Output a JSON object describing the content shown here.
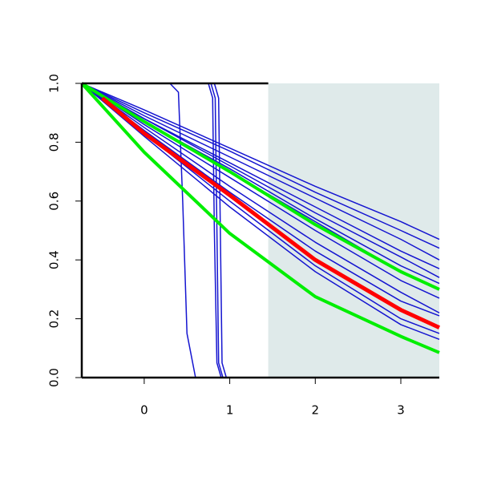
{
  "chart_data": {
    "type": "line",
    "xlim": [
      -0.73,
      3.45
    ],
    "ylim": [
      0,
      1
    ],
    "xticks": [
      0,
      1,
      2,
      3
    ],
    "yticks": [
      {
        "value": 0,
        "label": "0.0"
      },
      {
        "value": 0.2,
        "label": "0.2"
      },
      {
        "value": 0.4,
        "label": "0.4"
      },
      {
        "value": 0.6,
        "label": "0.6"
      },
      {
        "value": 0.8,
        "label": "0.8"
      },
      {
        "value": 1,
        "label": "1.0"
      }
    ],
    "shaded_region": {
      "x": [
        1.45,
        3.45
      ],
      "color": "#dfeaea"
    },
    "series": [
      {
        "color": "#1515d0",
        "width": 1.5,
        "x": [
          -0.73,
          0,
          1,
          2,
          3,
          3.45
        ],
        "values": [
          1,
          0.91,
          0.78,
          0.65,
          0.53,
          0.47
        ]
      },
      {
        "color": "#1515d0",
        "width": 1.5,
        "x": [
          -0.73,
          0,
          1,
          2,
          3,
          3.45
        ],
        "values": [
          1,
          0.9,
          0.77,
          0.63,
          0.5,
          0.44
        ]
      },
      {
        "color": "#1515d0",
        "width": 1.5,
        "x": [
          -0.73,
          0,
          1,
          2,
          3,
          3.45
        ],
        "values": [
          1,
          0.89,
          0.75,
          0.61,
          0.47,
          0.4
        ]
      },
      {
        "color": "#1515d0",
        "width": 1.5,
        "x": [
          -0.73,
          0,
          1,
          2,
          3,
          3.45
        ],
        "values": [
          1,
          0.88,
          0.73,
          0.58,
          0.43,
          0.37
        ]
      },
      {
        "color": "#1515d0",
        "width": 1.5,
        "x": [
          -0.73,
          0,
          1,
          2,
          3,
          3.45
        ],
        "values": [
          1,
          0.88,
          0.72,
          0.56,
          0.41,
          0.34
        ]
      },
      {
        "color": "#1515d0",
        "width": 1.5,
        "x": [
          -0.73,
          0,
          1,
          2,
          3,
          3.45
        ],
        "values": [
          1,
          0.87,
          0.71,
          0.54,
          0.38,
          0.32
        ]
      },
      {
        "color": "#1515d0",
        "width": 1.5,
        "x": [
          -0.73,
          0,
          1,
          2,
          3,
          3.45
        ],
        "values": [
          1,
          0.87,
          0.7,
          0.53,
          0.36,
          0.3
        ]
      },
      {
        "color": "#1515d0",
        "width": 1.5,
        "x": [
          -0.73,
          0,
          1,
          2,
          3,
          3.45
        ],
        "values": [
          1,
          0.86,
          0.68,
          0.5,
          0.33,
          0.27
        ]
      },
      {
        "color": "#1515d0",
        "width": 1.5,
        "x": [
          -0.73,
          0,
          1,
          2,
          3,
          3.45
        ],
        "values": [
          1,
          0.85,
          0.65,
          0.46,
          0.29,
          0.22
        ]
      },
      {
        "color": "#1515d0",
        "width": 1.5,
        "x": [
          -0.73,
          0,
          1,
          2,
          3,
          3.45
        ],
        "values": [
          1,
          0.84,
          0.63,
          0.43,
          0.26,
          0.21
        ]
      },
      {
        "color": "#1515d0",
        "width": 1.5,
        "x": [
          -0.73,
          0,
          1,
          2,
          3,
          3.45
        ],
        "values": [
          1,
          0.83,
          0.6,
          0.38,
          0.2,
          0.15
        ]
      },
      {
        "color": "#1515d0",
        "width": 1.5,
        "x": [
          -0.73,
          0,
          1,
          2,
          3,
          3.45
        ],
        "values": [
          1,
          0.82,
          0.58,
          0.36,
          0.18,
          0.13
        ]
      },
      {
        "color": "#1515d0",
        "width": 1.5,
        "x": [
          -0.73,
          0.3,
          0.4,
          0.45,
          0.5,
          0.6,
          3.45
        ],
        "values": [
          1,
          1,
          0.97,
          0.6,
          0.15,
          0,
          0
        ]
      },
      {
        "color": "#1515d0",
        "width": 1.5,
        "x": [
          -0.73,
          0.75,
          0.8,
          0.82,
          0.85,
          0.9,
          3.45
        ],
        "values": [
          1,
          1,
          0.95,
          0.5,
          0.05,
          0,
          0
        ]
      },
      {
        "color": "#1515d0",
        "width": 1.5,
        "x": [
          -0.73,
          0.78,
          0.83,
          0.85,
          0.87,
          0.92,
          3.45
        ],
        "values": [
          1,
          1,
          0.95,
          0.5,
          0.05,
          0,
          0
        ]
      },
      {
        "color": "#1515d0",
        "width": 1.5,
        "x": [
          -0.73,
          0.82,
          0.87,
          0.89,
          0.91,
          0.96,
          3.45
        ],
        "values": [
          1,
          1,
          0.95,
          0.5,
          0.05,
          0,
          0
        ]
      },
      {
        "color": "#00ee00",
        "width": 4,
        "x": [
          -0.73,
          0,
          1,
          2,
          3,
          3.45
        ],
        "values": [
          1,
          0.87,
          0.7,
          0.52,
          0.36,
          0.3
        ]
      },
      {
        "color": "#ff0000",
        "width": 5,
        "x": [
          -0.49,
          0,
          1,
          2,
          3,
          3.45
        ],
        "values": [
          0.95,
          0.83,
          0.62,
          0.4,
          0.23,
          0.17
        ]
      },
      {
        "color": "#00ee00",
        "width": 4,
        "x": [
          -0.73,
          0,
          1,
          2,
          3,
          3.45
        ],
        "values": [
          1,
          0.766,
          0.49,
          0.275,
          0.14,
          0.085
        ]
      }
    ]
  }
}
